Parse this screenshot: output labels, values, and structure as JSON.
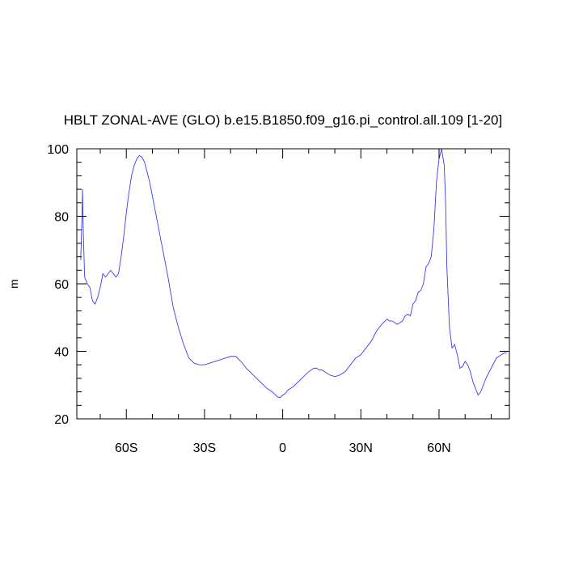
{
  "chart_data": {
    "type": "line",
    "title": "HBLT ZONAL-AVE (GLO) b.e15.B1850.f09_g16.pi_control.all.109 [1-20]",
    "ylabel": "m",
    "xlabel": "",
    "xlim": [
      -79,
      87
    ],
    "ylim": [
      20,
      100
    ],
    "x_ticks": [
      {
        "value": -60,
        "label": "60S"
      },
      {
        "value": -30,
        "label": "30S"
      },
      {
        "value": 0,
        "label": "0"
      },
      {
        "value": 30,
        "label": "30N"
      },
      {
        "value": 60,
        "label": "60N"
      }
    ],
    "y_ticks": [
      {
        "value": 20,
        "label": "20"
      },
      {
        "value": 40,
        "label": "40"
      },
      {
        "value": 60,
        "label": "60"
      },
      {
        "value": 80,
        "label": "80"
      },
      {
        "value": 100,
        "label": "100"
      }
    ],
    "line_color": "#3b3bf0",
    "series": [
      {
        "x": [
          -77.5,
          -77.0,
          -76.8,
          -76.5,
          -76.0,
          -75.0,
          -74.0,
          -73.0,
          -72.0,
          -71.0,
          -70.0,
          -69.0,
          -68.0,
          -67.0,
          -66.0,
          -65.0,
          -64.0,
          -63.0,
          -62.0,
          -61.0,
          -60.0,
          -59.0,
          -58.0,
          -57.0,
          -56.0,
          -55.0,
          -54.0,
          -53.0,
          -52.0,
          -51.0,
          -50.0,
          -48.0,
          -46.0,
          -44.0,
          -42.0,
          -40.0,
          -38.0,
          -36.0,
          -34.0,
          -32.0,
          -30.0,
          -28.0,
          -26.0,
          -24.0,
          -22.0,
          -20.0,
          -18.0,
          -16.0,
          -14.0,
          -12.0,
          -10.0,
          -8.0,
          -6.0,
          -4.0,
          -2.0,
          -1.0,
          0.0,
          1.0,
          2.0,
          3.0,
          4.0,
          6.0,
          8.0,
          10.0,
          12.0,
          13.0,
          14.0,
          15.0,
          16.0,
          18.0,
          20.0,
          22.0,
          24.0,
          26.0,
          28.0,
          30.0,
          31.0,
          32.0,
          34.0,
          36.0,
          38.0,
          40.0,
          41.0,
          42.0,
          43.0,
          44.0,
          45.0,
          46.0,
          47.0,
          48.0,
          49.0,
          50.0,
          51.0,
          52.0,
          53.0,
          54.0,
          55.0,
          56.0,
          57.0,
          58.0,
          59.0,
          60.0,
          61.0,
          62.0,
          62.5,
          63.0,
          64.0,
          65.0,
          66.0,
          67.0,
          68.0,
          69.0,
          70.0,
          71.0,
          72.0,
          73.0,
          74.0,
          75.0,
          76.0,
          77.0,
          78.0,
          79.0,
          80.0,
          81.0,
          82.0,
          83.0,
          84.0,
          85.0,
          86.0
        ],
        "values": [
          67,
          80,
          88,
          75,
          62,
          60,
          59,
          55,
          54,
          56,
          59,
          63,
          62,
          63,
          64,
          63,
          62,
          63,
          68,
          74,
          81,
          87,
          92,
          95,
          97,
          98,
          97.5,
          96,
          93,
          90,
          86,
          78,
          70,
          62,
          53,
          47,
          42,
          38,
          36.5,
          36,
          36,
          36.5,
          37,
          37.5,
          38,
          38.5,
          38.5,
          37,
          35,
          33.5,
          32,
          30.5,
          29,
          28,
          26.5,
          26.3,
          27,
          27.5,
          28.5,
          29,
          29.5,
          31,
          32.5,
          34,
          35,
          35,
          34.5,
          34.5,
          34,
          33,
          32.5,
          33,
          34,
          36,
          38,
          39,
          40,
          41,
          43,
          46,
          48,
          49.5,
          49,
          49,
          48.5,
          48,
          48.5,
          49,
          50.5,
          51,
          50.5,
          54,
          55,
          57.5,
          58,
          60,
          65,
          66,
          68,
          76,
          90,
          97,
          100,
          95,
          85,
          65,
          47,
          41,
          42,
          39,
          35,
          35.5,
          37,
          36,
          34,
          31,
          29,
          27,
          28,
          30,
          32,
          33.5,
          35,
          36.5,
          38,
          38.5,
          39,
          39.5,
          39.5
        ]
      }
    ]
  }
}
